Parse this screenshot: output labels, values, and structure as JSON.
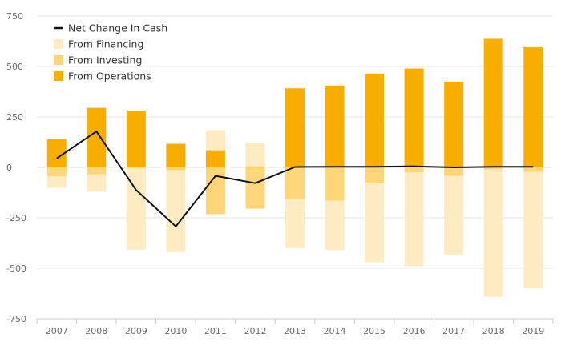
{
  "chart_data": {
    "type": "bar",
    "stacked": true,
    "categories": [
      "2007",
      "2008",
      "2009",
      "2010",
      "2011",
      "2012",
      "2013",
      "2014",
      "2015",
      "2016",
      "2017",
      "2018",
      "2019"
    ],
    "series": [
      {
        "name": "From Operations",
        "kind": "bar",
        "color": "#f7ae00",
        "values": [
          140,
          295,
          282,
          117,
          85,
          5,
          392,
          405,
          465,
          490,
          425,
          637,
          595
        ]
      },
      {
        "name": "From Investing",
        "kind": "bar",
        "color": "#ffd57a",
        "values": [
          -45,
          -35,
          -3,
          -15,
          -232,
          -205,
          -158,
          -165,
          -80,
          -25,
          -42,
          -10,
          -22
        ]
      },
      {
        "name": "From Financing",
        "kind": "bar",
        "color": "#ffebc2",
        "values": [
          -55,
          -85,
          -405,
          -405,
          100,
          118,
          -242,
          -245,
          -390,
          -465,
          -390,
          -632,
          -578
        ]
      },
      {
        "name": "Net Change In Cash",
        "kind": "line",
        "color": "#111111",
        "values": [
          45,
          178,
          -112,
          -293,
          -42,
          -78,
          2,
          3,
          3,
          5,
          0,
          3,
          3
        ]
      }
    ],
    "legend": [
      "Net Change In Cash",
      "From Financing",
      "From Investing",
      "From Operations"
    ],
    "y_ticks": [
      750,
      500,
      250,
      0,
      -250,
      -500,
      -750
    ],
    "y_tick_labels": [
      "750",
      "500",
      "250",
      "0",
      "-250",
      "-500",
      "-750"
    ],
    "ylim": [
      -750,
      750
    ],
    "grid": true,
    "legend_position": "top-left",
    "title": "",
    "xlabel": "",
    "ylabel": ""
  }
}
